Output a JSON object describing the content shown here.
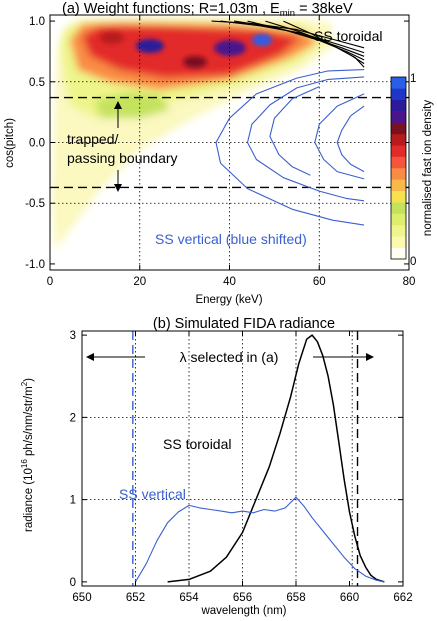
{
  "chart_data": [
    {
      "type": "heatmap",
      "title_prefix": "(a) Weight functions; R=1.03m , E",
      "title_sub": "min",
      "title_suffix": " = 38keV",
      "xlabel": "Energy (keV)",
      "ylabel": "cos(pitch)",
      "xlim": [
        0,
        80
      ],
      "ylim": [
        -1.05,
        1.05
      ],
      "xticks": [
        "0",
        "20",
        "40",
        "60",
        "80"
      ],
      "xtick_values": [
        0,
        20,
        40,
        60,
        80
      ],
      "yticks": [
        "-1.0",
        "-0.5",
        "0.0",
        "0.5",
        "1.0"
      ],
      "ytick_values": [
        -1.0,
        -0.5,
        0.0,
        0.5,
        1.0
      ],
      "grid_dotted_x": [
        20,
        40,
        60
      ],
      "grid_dotted_y": [
        -0.5,
        0.0,
        0.5
      ],
      "boundary_dashed_y": [
        0.37,
        -0.37
      ],
      "colorbar": {
        "label": "normalised fast ion density",
        "ticks": [
          "0",
          "1"
        ],
        "colors": [
          "#fffef0",
          "#fbf8b0",
          "#eef58a",
          "#dcee6c",
          "#c5e25d",
          "#f8e150",
          "#f9b84a",
          "#f98c44",
          "#f5553d",
          "#e32b2b",
          "#b71c1c",
          "#7a1020",
          "#4a148c",
          "#2c1a9a",
          "#1f36c8",
          "#2a5ee8"
        ]
      },
      "annotations": {
        "ss_toroidal": "SS toroidal",
        "boundary_line1": "trapped/",
        "boundary_line2": "passing boundary",
        "ss_vertical": "SS vertical (blue shifted)"
      },
      "series": [
        {
          "name": "SS toroidal",
          "color": "#000000",
          "contours": [
            {
              "x": [
                36,
                45,
                55,
                64,
                70
              ],
              "y": [
                1.0,
                0.98,
                0.93,
                0.84,
                0.78
              ]
            },
            {
              "x": [
                38,
                47,
                56,
                64,
                70
              ],
              "y": [
                1.0,
                0.96,
                0.9,
                0.81,
                0.74
              ]
            },
            {
              "x": [
                41,
                50,
                58,
                65,
                70
              ],
              "y": [
                1.0,
                0.95,
                0.87,
                0.78,
                0.71
              ]
            },
            {
              "x": [
                44,
                52,
                60,
                66,
                70
              ],
              "y": [
                1.0,
                0.93,
                0.84,
                0.75,
                0.68
              ]
            },
            {
              "x": [
                48,
                55,
                62,
                67,
                70
              ],
              "y": [
                1.0,
                0.92,
                0.82,
                0.72,
                0.65
              ]
            },
            {
              "x": [
                52,
                58,
                63,
                68,
                70
              ],
              "y": [
                1.0,
                0.9,
                0.8,
                0.7,
                0.62
              ]
            }
          ]
        },
        {
          "name": "SS vertical (blue shifted)",
          "color": "#3a5fd0",
          "contours": [
            {
              "x": [
                70,
                62,
                55,
                46,
                40,
                37,
                38,
                44,
                54,
                63,
                70
              ],
              "y": [
                0.6,
                0.59,
                0.53,
                0.4,
                0.2,
                0.0,
                -0.17,
                -0.38,
                -0.55,
                -0.64,
                -0.68
              ]
            },
            {
              "x": [
                70,
                62,
                55,
                49,
                45,
                44,
                46,
                52,
                60,
                66,
                70
              ],
              "y": [
                0.54,
                0.52,
                0.45,
                0.31,
                0.15,
                0.0,
                -0.14,
                -0.29,
                -0.4,
                -0.46,
                -0.48
              ]
            },
            {
              "x": [
                60,
                54,
                50,
                49,
                51,
                54,
                58
              ],
              "y": [
                0.46,
                0.36,
                0.2,
                0.05,
                -0.1,
                -0.2,
                -0.27
              ]
            },
            {
              "x": [
                70,
                64,
                60,
                59,
                61,
                64,
                70
              ],
              "y": [
                0.4,
                0.3,
                0.15,
                0.0,
                -0.14,
                -0.24,
                -0.3
              ]
            },
            {
              "x": [
                70,
                67,
                65,
                64,
                65,
                67,
                70
              ],
              "y": [
                0.3,
                0.22,
                0.1,
                0.0,
                -0.1,
                -0.18,
                -0.24
              ]
            }
          ]
        }
      ]
    },
    {
      "type": "line",
      "title": "(b) Simulated FIDA radiance",
      "xlabel": "wavelength (nm)",
      "ylabel": "radiance (10",
      "ylabel_sup": "16",
      "ylabel_rest": " ph/s/nm/str/m",
      "ylabel_sup2": "2",
      "ylabel_end": ")",
      "xlim": [
        650,
        662
      ],
      "ylim": [
        -0.05,
        3.05
      ],
      "xticks": [
        "650",
        "652",
        "654",
        "656",
        "658",
        "660",
        "662"
      ],
      "xtick_values": [
        650,
        652,
        654,
        656,
        658,
        660,
        662
      ],
      "yticks": [
        "0",
        "1",
        "2",
        "3"
      ],
      "ytick_values": [
        0,
        1,
        2,
        3
      ],
      "grid_dotted_x": [
        652,
        654,
        656,
        658,
        660.1
      ],
      "grid_dotted_y": [
        1,
        2
      ],
      "selected_range_lines": [
        {
          "x": 651.9,
          "color": "#3a5fd0"
        },
        {
          "x": 660.3,
          "color": "#000000"
        }
      ],
      "annotations": {
        "lambda_selected": "λ selected in (a)",
        "ss_toroidal": "SS toroidal",
        "ss_vertical": "SS vertical"
      },
      "series": [
        {
          "name": "SS toroidal",
          "color": "#000000",
          "x": [
            653.2,
            654.0,
            654.8,
            655.4,
            656.0,
            656.5,
            657.0,
            657.4,
            657.8,
            658.1,
            658.4,
            658.6,
            658.8,
            659.0,
            659.2,
            659.4,
            659.6,
            659.8,
            660.0,
            660.2,
            660.4,
            660.6,
            660.8,
            661.0,
            661.3
          ],
          "y": [
            0.0,
            0.03,
            0.13,
            0.3,
            0.6,
            1.0,
            1.4,
            1.8,
            2.25,
            2.65,
            2.95,
            3.0,
            2.92,
            2.75,
            2.5,
            2.15,
            1.7,
            1.25,
            0.85,
            0.55,
            0.32,
            0.18,
            0.08,
            0.03,
            0.0
          ]
        },
        {
          "name": "SS vertical",
          "color": "#3a5fd0",
          "x": [
            652.0,
            652.4,
            652.8,
            653.2,
            653.6,
            654.0,
            654.4,
            654.8,
            655.2,
            655.6,
            656.0,
            656.4,
            656.8,
            657.2,
            657.6,
            658.0,
            658.3,
            658.6,
            659.0,
            659.4,
            659.8,
            660.2,
            660.6,
            661.0,
            661.3
          ],
          "y": [
            0.0,
            0.22,
            0.5,
            0.72,
            0.85,
            0.93,
            0.9,
            0.88,
            0.86,
            0.84,
            0.86,
            0.84,
            0.88,
            0.86,
            0.9,
            1.03,
            0.92,
            0.78,
            0.62,
            0.46,
            0.3,
            0.16,
            0.07,
            0.02,
            0.0
          ]
        }
      ]
    }
  ]
}
